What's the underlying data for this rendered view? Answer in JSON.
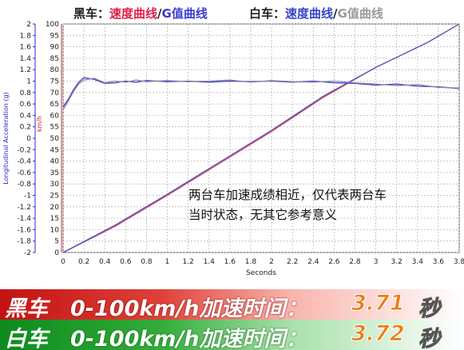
{
  "legend": {
    "black": {
      "label": "黑车：",
      "speed": "速度曲线",
      "sep": "/",
      "g": "G值曲线"
    },
    "white": {
      "label": "白车：",
      "speed": "速度曲线",
      "sep": "/",
      "g": "G值曲线"
    }
  },
  "note": {
    "line1": "两台车加速成绩相近，仅代表两台车",
    "line2": "当时状态，无其它参考意义"
  },
  "results": [
    {
      "car": "黑车",
      "desc": "0-100km/h加速时间：",
      "time": "3.71",
      "unit": "秒"
    },
    {
      "car": "白车",
      "desc": "0-100km/h加速时间：",
      "time": "3.72",
      "unit": "秒"
    }
  ],
  "chart_data": {
    "type": "line",
    "xlabel": "Seconds",
    "ylabel_left": "Longitudinal Acceleration (g)",
    "ylabel_right": "km/h",
    "xlim": [
      0,
      3.8
    ],
    "ylim_left": [
      -2,
      2
    ],
    "ylim_right": [
      0,
      100
    ],
    "grid": true,
    "x_ticks": [
      "0",
      "0.2",
      "0.4",
      "0.6",
      "0.8",
      "1",
      "1.2",
      "1.4",
      "1.6",
      "1.8",
      "2",
      "2.2",
      "2.4",
      "2.6",
      "2.8",
      "3",
      "3.2",
      "3.4",
      "3.6",
      "3.8"
    ],
    "y_left_ticks": [
      "-2",
      "-1.8",
      "-1.6",
      "-1.4",
      "-1.2",
      "-1",
      "-0.8",
      "-0.6",
      "-0.4",
      "-0.2",
      "0",
      "0.2",
      "0.4",
      "0.6",
      "0.8",
      "1",
      "1.2",
      "1.4",
      "1.6",
      "1.8",
      "2"
    ],
    "y_right_ticks": [
      "0",
      "5",
      "10",
      "15",
      "20",
      "25",
      "30",
      "35",
      "40",
      "45",
      "50",
      "55",
      "60",
      "65",
      "70",
      "75",
      "80",
      "85",
      "90",
      "95",
      "100"
    ],
    "series": [
      {
        "name": "黑车 速度曲线",
        "axis": "right",
        "color": "#d83a5a",
        "x": [
          0,
          0.5,
          1.0,
          1.5,
          2.0,
          2.5,
          3.0,
          3.5,
          3.8
        ],
        "y": [
          0,
          11.5,
          25,
          39,
          53,
          68,
          81,
          92,
          100
        ]
      },
      {
        "name": "白车 速度曲线",
        "axis": "right",
        "color": "#5058c0",
        "x": [
          0,
          0.5,
          1.0,
          1.5,
          2.0,
          2.5,
          3.0,
          3.5,
          3.8
        ],
        "y": [
          0,
          12,
          25.5,
          39.5,
          53.5,
          68.5,
          81,
          92,
          100
        ]
      },
      {
        "name": "黑车 G值曲线",
        "axis": "left",
        "color": "#3a3ad0",
        "x": [
          0,
          0.05,
          0.1,
          0.15,
          0.2,
          0.3,
          0.4,
          0.5,
          0.6,
          0.7,
          0.8,
          1.0,
          1.2,
          1.4,
          1.6,
          1.8,
          2.0,
          2.2,
          2.4,
          2.6,
          2.8,
          3.0,
          3.2,
          3.4,
          3.6,
          3.8
        ],
        "y": [
          0.55,
          0.68,
          0.85,
          0.98,
          1.06,
          1.03,
          0.96,
          0.97,
          1.0,
          0.98,
          1.01,
          0.99,
          1.0,
          0.98,
          1.0,
          0.99,
          1.0,
          0.98,
          1.0,
          0.97,
          0.96,
          0.93,
          0.95,
          0.91,
          0.9,
          0.87
        ]
      },
      {
        "name": "白车 G值曲线",
        "axis": "left",
        "color": "#8a8aa0",
        "x": [
          0,
          0.05,
          0.1,
          0.15,
          0.2,
          0.3,
          0.4,
          0.5,
          0.6,
          0.7,
          0.8,
          1.0,
          1.2,
          1.4,
          1.6,
          1.8,
          2.0,
          2.2,
          2.4,
          2.6,
          2.8,
          3.0,
          3.2,
          3.4,
          3.6,
          3.8
        ],
        "y": [
          0.5,
          0.65,
          0.82,
          0.95,
          1.02,
          1.05,
          0.97,
          1.0,
          0.98,
          1.02,
          0.99,
          1.01,
          0.99,
          1.0,
          1.02,
          0.98,
          1.01,
          0.99,
          0.98,
          1.0,
          0.97,
          0.95,
          0.92,
          0.94,
          0.89,
          0.88
        ]
      }
    ]
  }
}
